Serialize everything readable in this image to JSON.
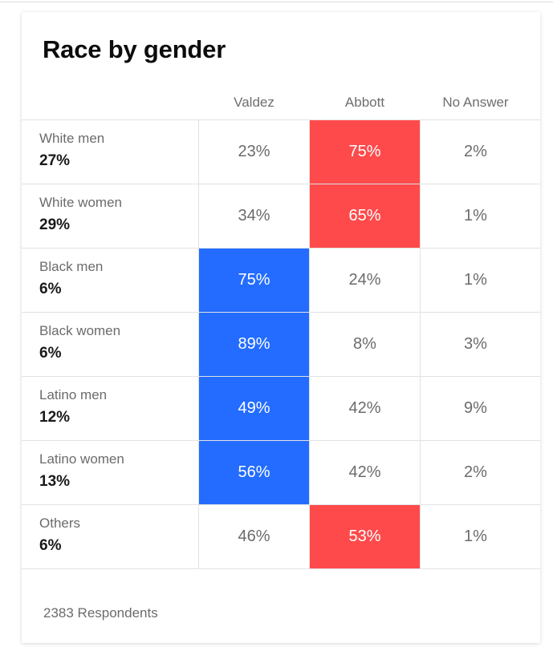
{
  "title": "Race by gender",
  "footer": "2383 Respondents",
  "colors": {
    "valdez_win": "#236cff",
    "abbott_win": "#ff4a4c",
    "text": "#6b6b6b"
  },
  "chart_data": {
    "type": "table",
    "title": "Race by gender",
    "columns": [
      "Valdez",
      "Abbott",
      "No Answer"
    ],
    "rows": [
      {
        "label": "White men",
        "share": "27%",
        "values": [
          "23%",
          "75%",
          "2%"
        ],
        "winner": 1
      },
      {
        "label": "White women",
        "share": "29%",
        "values": [
          "34%",
          "65%",
          "1%"
        ],
        "winner": 1
      },
      {
        "label": "Black men",
        "share": "6%",
        "values": [
          "75%",
          "24%",
          "1%"
        ],
        "winner": 0
      },
      {
        "label": "Black women",
        "share": "6%",
        "values": [
          "89%",
          "8%",
          "3%"
        ],
        "winner": 0
      },
      {
        "label": "Latino men",
        "share": "12%",
        "values": [
          "49%",
          "42%",
          "9%"
        ],
        "winner": 0
      },
      {
        "label": "Latino women",
        "share": "13%",
        "values": [
          "56%",
          "42%",
          "2%"
        ],
        "winner": 0
      },
      {
        "label": "Others",
        "share": "6%",
        "values": [
          "46%",
          "53%",
          "1%"
        ],
        "winner": 1
      }
    ]
  }
}
